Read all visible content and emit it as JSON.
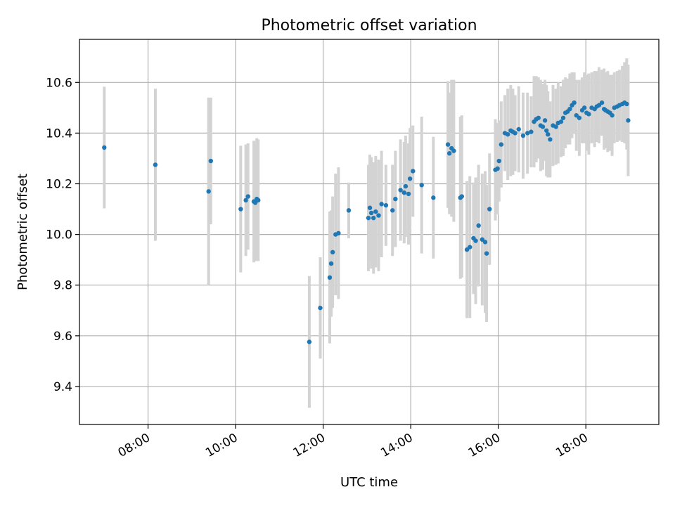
{
  "chart_data": {
    "type": "scatter",
    "title": "Photometric offset variation",
    "xlabel": "UTC time",
    "ylabel": "Photometric offset",
    "xlim": [
      "06:26",
      "19:40"
    ],
    "ylim": [
      9.25,
      10.77
    ],
    "x_ticks": [
      "08:00",
      "10:00",
      "12:00",
      "14:00",
      "16:00",
      "18:00"
    ],
    "y_ticks": [
      "9.4",
      "9.6",
      "9.8",
      "10.0",
      "10.2",
      "10.4",
      "10.6"
    ],
    "grid": true,
    "colors": {
      "points": "#1f77b4",
      "errorbars": "#d3d3d3",
      "grid": "#b0b0b0"
    },
    "series": [
      {
        "x": [
          "07:00",
          "08:10",
          "09:23",
          "09:26",
          "10:07",
          "10:14",
          "10:17",
          "10:25",
          "10:27",
          "10:29",
          "10:31",
          "11:41",
          "11:56",
          "12:09",
          "12:11",
          "12:13",
          "12:17",
          "12:21",
          "12:35",
          "13:02",
          "13:04",
          "13:06",
          "13:09",
          "13:12",
          "13:16",
          "13:20",
          "13:26",
          "13:35",
          "13:39",
          "13:46",
          "13:51",
          "13:53",
          "13:57",
          "13:59",
          "14:03",
          "14:15",
          "14:31",
          "14:51",
          "14:53",
          "14:56",
          "14:59",
          "15:08",
          "15:10",
          "15:17",
          "15:21",
          "15:26",
          "15:29",
          "15:33",
          "15:38",
          "15:42",
          "15:44",
          "15:48",
          "15:56",
          "15:59",
          "16:01",
          "16:04",
          "16:09",
          "16:13",
          "16:17",
          "16:20",
          "16:23",
          "16:28",
          "16:34",
          "16:40",
          "16:45",
          "16:49",
          "16:52",
          "16:55",
          "16:58",
          "17:01",
          "17:04",
          "17:06",
          "17:08",
          "17:11",
          "17:15",
          "17:19",
          "17:22",
          "17:26",
          "17:29",
          "17:32",
          "17:35",
          "17:38",
          "17:41",
          "17:44",
          "17:47",
          "17:51",
          "17:55",
          "17:58",
          "18:01",
          "18:04",
          "18:08",
          "18:12",
          "18:15",
          "18:18",
          "18:22",
          "18:25",
          "18:27",
          "18:30",
          "18:33",
          "18:36",
          "18:39",
          "18:43",
          "18:46",
          "18:50",
          "18:53",
          "18:56",
          "18:58"
        ],
        "y": [
          10.343,
          10.275,
          10.17,
          10.29,
          10.1,
          10.135,
          10.15,
          10.13,
          10.125,
          10.14,
          10.135,
          9.576,
          9.71,
          9.83,
          9.885,
          9.93,
          10.0,
          10.005,
          10.095,
          10.065,
          10.105,
          10.085,
          10.065,
          10.09,
          10.075,
          10.12,
          10.115,
          10.095,
          10.14,
          10.175,
          10.165,
          10.19,
          10.16,
          10.22,
          10.25,
          10.195,
          10.145,
          10.355,
          10.32,
          10.34,
          10.33,
          10.145,
          10.15,
          9.94,
          9.95,
          9.985,
          9.975,
          10.035,
          9.98,
          9.97,
          9.925,
          10.1,
          10.255,
          10.26,
          10.29,
          10.355,
          10.4,
          10.395,
          10.41,
          10.405,
          10.4,
          10.415,
          10.39,
          10.4,
          10.405,
          10.445,
          10.455,
          10.46,
          10.43,
          10.425,
          10.45,
          10.41,
          10.395,
          10.375,
          10.43,
          10.425,
          10.44,
          10.445,
          10.46,
          10.48,
          10.485,
          10.495,
          10.51,
          10.52,
          10.47,
          10.46,
          10.49,
          10.5,
          10.48,
          10.475,
          10.5,
          10.495,
          10.505,
          10.51,
          10.52,
          10.495,
          10.49,
          10.485,
          10.48,
          10.47,
          10.5,
          10.505,
          10.51,
          10.515,
          10.52,
          10.515,
          10.45
        ],
        "err": [
          0.24,
          0.3,
          0.37,
          0.25,
          0.25,
          0.22,
          0.21,
          0.24,
          0.23,
          0.24,
          0.24,
          0.26,
          0.2,
          0.26,
          0.21,
          0.22,
          0.24,
          0.26,
          0.11,
          0.21,
          0.21,
          0.22,
          0.22,
          0.22,
          0.22,
          0.21,
          0.16,
          0.18,
          0.19,
          0.2,
          0.2,
          0.2,
          0.2,
          0.2,
          0.18,
          0.27,
          0.24,
          0.25,
          0.24,
          0.27,
          0.28,
          0.32,
          0.32,
          0.27,
          0.28,
          0.22,
          0.25,
          0.24,
          0.26,
          0.28,
          0.27,
          0.22,
          0.2,
          0.18,
          0.16,
          0.17,
          0.15,
          0.18,
          0.18,
          0.17,
          0.15,
          0.17,
          0.17,
          0.16,
          0.14,
          0.18,
          0.17,
          0.16,
          0.18,
          0.17,
          0.16,
          0.18,
          0.17,
          0.15,
          0.16,
          0.15,
          0.16,
          0.14,
          0.15,
          0.14,
          0.13,
          0.14,
          0.13,
          0.12,
          0.14,
          0.15,
          0.13,
          0.14,
          0.15,
          0.16,
          0.14,
          0.15,
          0.14,
          0.15,
          0.13,
          0.16,
          0.15,
          0.16,
          0.15,
          0.16,
          0.14,
          0.14,
          0.14,
          0.15,
          0.16,
          0.18,
          0.22
        ]
      }
    ]
  }
}
